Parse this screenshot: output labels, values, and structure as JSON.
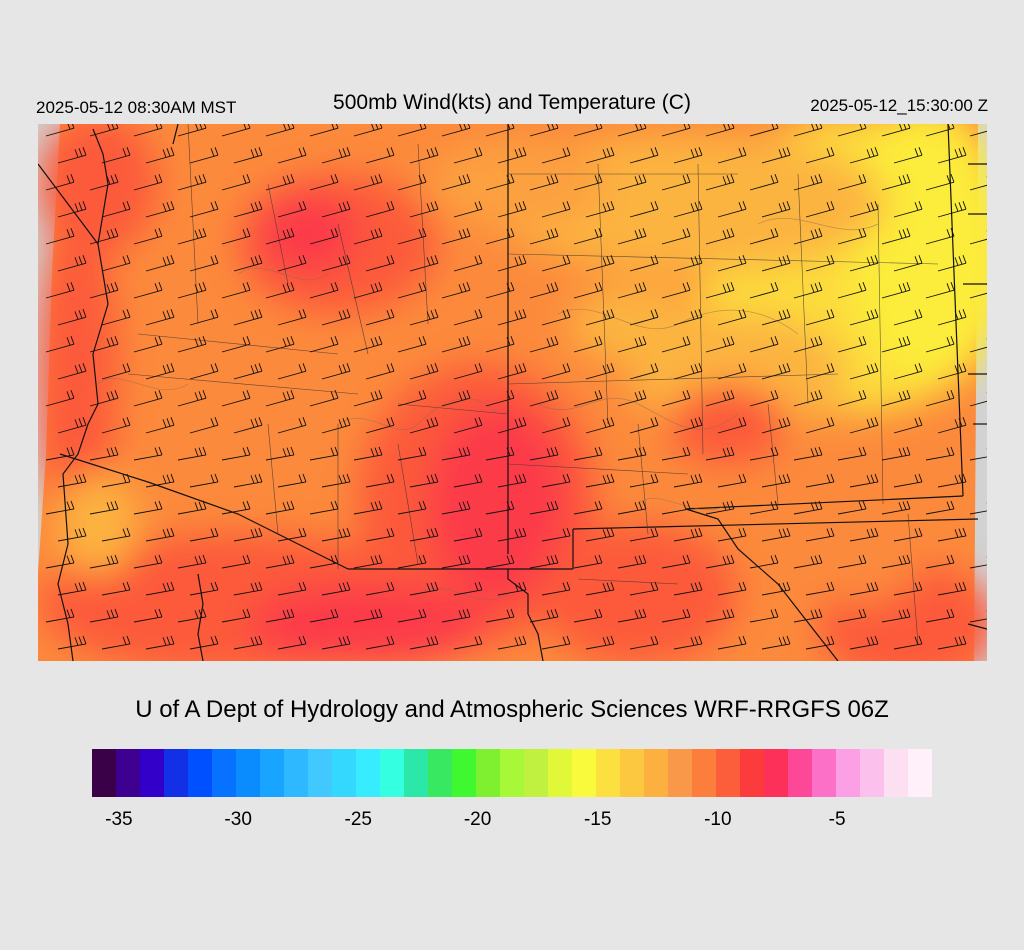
{
  "header": {
    "local_time": "2025-05-12 08:30AM MST",
    "title": "500mb Wind(kts) and Temperature (C)",
    "valid_time": "2025-05-12_15:30:00 Z"
  },
  "footer": {
    "credit": "U of A Dept of Hydrology and Atmospheric Sciences WRF-RRGFS 06Z"
  },
  "colorbar": {
    "colors": [
      "#3a0048",
      "#3d0090",
      "#3200c8",
      "#1230e6",
      "#0050ff",
      "#0672ff",
      "#0a8cff",
      "#19a4ff",
      "#2eb8ff",
      "#40c8ff",
      "#34d8ff",
      "#38ecff",
      "#34ffe0",
      "#2ce8a8",
      "#38e860",
      "#40f830",
      "#7ef030",
      "#a8f83a",
      "#c0f040",
      "#e0f838",
      "#fafa3c",
      "#fce040",
      "#fcc840",
      "#fcb040",
      "#f89848",
      "#fc7e3c",
      "#fc5e3c",
      "#fc3c3c",
      "#fc3058",
      "#fc4896",
      "#fc70c8",
      "#fca0e6",
      "#fcc0ec",
      "#fce0f2",
      "#fff0fa"
    ],
    "ticks": [
      {
        "label": "-35",
        "pos": 0.032
      },
      {
        "label": "-30",
        "pos": 0.174
      },
      {
        "label": "-25",
        "pos": 0.317
      },
      {
        "label": "-20",
        "pos": 0.459
      },
      {
        "label": "-15",
        "pos": 0.602
      },
      {
        "label": "-10",
        "pos": 0.745
      },
      {
        "label": "-5",
        "pos": 0.887
      }
    ]
  },
  "map": {
    "palette": {
      "warm": "#fc5a3a",
      "hot": "#fc3a4a",
      "mild": "#fc8a3c",
      "cool": "#fcb440",
      "cold": "#fcdc3c",
      "coldest": "#fcec3a",
      "border": "#111111",
      "contour": "#8a6a50",
      "nodata": "#d2d2d2"
    }
  }
}
